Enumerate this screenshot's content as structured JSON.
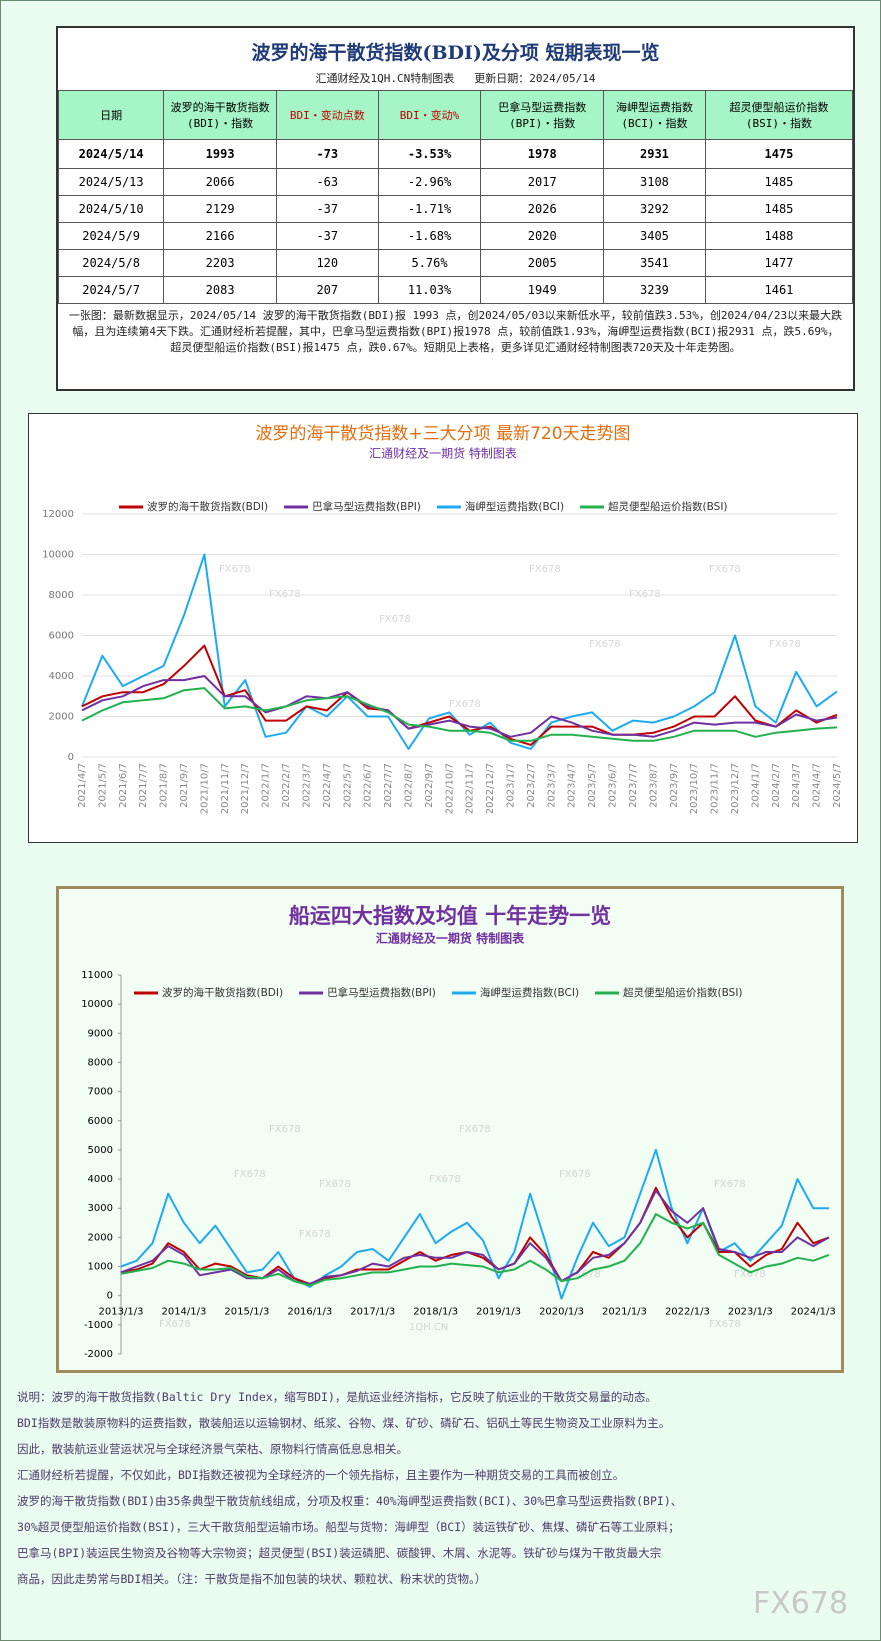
{
  "header": {
    "title": "波罗的海干散货指数(BDI)及分项  短期表现一览",
    "source": "汇通财经及1QH.CN特制图表",
    "update": "更新日期：2024/05/14"
  },
  "table": {
    "columns": [
      [
        "日期"
      ],
      [
        "波罗的海干散货指数",
        "(BDI)・指数"
      ],
      [
        "BDI・变动点数"
      ],
      [
        "BDI・变动%"
      ],
      [
        "巴拿马型运费指数",
        "(BPI)・指数"
      ],
      [
        "海岬型运费指数",
        "(BCI)・指数"
      ],
      [
        "超灵便型船运价指数",
        "(BSI)・指数"
      ]
    ],
    "rows": [
      [
        "2024/5/14",
        "1993",
        "-73",
        "-3.53%",
        "1978",
        "2931",
        "1475"
      ],
      [
        "2024/5/13",
        "2066",
        "-63",
        "-2.96%",
        "2017",
        "3108",
        "1485"
      ],
      [
        "2024/5/10",
        "2129",
        "-37",
        "-1.71%",
        "2026",
        "3292",
        "1485"
      ],
      [
        "2024/5/9",
        "2166",
        "-37",
        "-1.68%",
        "2020",
        "3405",
        "1488"
      ],
      [
        "2024/5/8",
        "2203",
        "120",
        "5.76%",
        "2005",
        "3541",
        "1477"
      ],
      [
        "2024/5/7",
        "2083",
        "207",
        "11.03%",
        "1949",
        "3239",
        "1461"
      ]
    ]
  },
  "summary": "一张图：最新数据显示，2024/05/14 波罗的海干散货指数(BDI)报 1993 点，创2024/05/03以来新低水平，较前值跌3.53%，创2024/04/23以来最大跌幅，且为连续第4天下跌。汇通财经析若提醒，其中，巴拿马型运费指数(BPI)报1978 点，较前值跌1.93%，海岬型运费指数(BCI)报2931 点，跌5.69%，超灵便型船运价指数(BSI)报1475 点，跌0.67%。短期见上表格，更多详见汇通财经特制图表720天及十年走势图。",
  "chart_data": [
    {
      "type": "line",
      "title": "波罗的海干散货指数+三大分项  最新720天走势图",
      "subtitle": "汇通财经及一期货  特制图表",
      "title_color": "#e46c0a",
      "subtitle_color": "#7030a0",
      "categories": [
        "2021/4/7",
        "2021/5/7",
        "2021/6/7",
        "2021/7/7",
        "2021/8/7",
        "2021/9/7",
        "2021/10/7",
        "2021/11/7",
        "2021/12/7",
        "2022/1/7",
        "2022/2/7",
        "2022/3/7",
        "2022/4/7",
        "2022/5/7",
        "2022/6/7",
        "2022/7/7",
        "2022/8/7",
        "2022/9/7",
        "2022/10/7",
        "2022/11/7",
        "2022/12/7",
        "2023/1/7",
        "2023/2/7",
        "2023/3/7",
        "2023/4/7",
        "2023/5/7",
        "2023/6/7",
        "2023/7/7",
        "2023/8/7",
        "2023/9/7",
        "2023/10/7",
        "2023/11/7",
        "2023/12/7",
        "2024/1/7",
        "2024/2/7",
        "2024/3/7",
        "2024/4/7",
        "2024/5/7"
      ],
      "series": [
        {
          "name": "波罗的海干散货指数(BDI)",
          "color": "#c00000",
          "values": [
            2500,
            3000,
            3200,
            3200,
            3600,
            4500,
            5500,
            3000,
            3300,
            1800,
            1800,
            2500,
            2300,
            3200,
            2400,
            2300,
            1400,
            1700,
            2000,
            1300,
            1500,
            900,
            600,
            1500,
            1500,
            1500,
            1100,
            1100,
            1200,
            1500,
            2000,
            2000,
            3000,
            1800,
            1500,
            2300,
            1700,
            2083
          ]
        },
        {
          "name": "巴拿马型运费指数(BPI)",
          "color": "#7030a0",
          "values": [
            2300,
            2800,
            3000,
            3500,
            3800,
            3800,
            4000,
            3000,
            3000,
            2200,
            2500,
            3000,
            2900,
            3200,
            2500,
            2300,
            1400,
            1600,
            1800,
            1500,
            1400,
            1000,
            1200,
            2000,
            1700,
            1300,
            1100,
            1100,
            1000,
            1300,
            1700,
            1600,
            1700,
            1700,
            1500,
            2100,
            1800,
            1949
          ]
        },
        {
          "name": "海岬型运费指数(BCI)",
          "color": "#1eaaf0",
          "values": [
            2500,
            5000,
            3500,
            4000,
            4500,
            7000,
            10000,
            2500,
            3800,
            1000,
            1200,
            2500,
            2000,
            3000,
            2000,
            2000,
            400,
            1900,
            2200,
            1100,
            1700,
            700,
            400,
            1700,
            2000,
            2200,
            1300,
            1800,
            1700,
            2000,
            2500,
            3200,
            6000,
            2500,
            1700,
            4200,
            2500,
            3239
          ]
        },
        {
          "name": "超灵便型船运价指数(BSI)",
          "color": "#22b14c",
          "values": [
            1800,
            2300,
            2700,
            2800,
            2900,
            3300,
            3400,
            2400,
            2500,
            2300,
            2500,
            2800,
            2900,
            3000,
            2600,
            2200,
            1600,
            1500,
            1300,
            1300,
            1200,
            800,
            800,
            1100,
            1100,
            1000,
            900,
            800,
            800,
            1000,
            1300,
            1300,
            1300,
            1000,
            1200,
            1300,
            1400,
            1461
          ]
        }
      ],
      "ylim": [
        0,
        12000
      ],
      "yticks": [
        0,
        2000,
        4000,
        6000,
        8000,
        10000,
        12000
      ],
      "grid": true
    },
    {
      "type": "line",
      "title": "船运四大指数及均值 十年走势一览",
      "subtitle": "汇通财经及一期货 特制图表",
      "title_color": "#7030a0",
      "subtitle_color": "#7030a0",
      "categories": [
        "2013/1/3",
        null,
        null,
        null,
        "2014/1/3",
        null,
        null,
        null,
        "2015/1/3",
        null,
        null,
        null,
        "2016/1/3",
        null,
        null,
        null,
        "2017/1/3",
        null,
        null,
        null,
        "2018/1/3",
        null,
        null,
        null,
        "2019/1/3",
        null,
        null,
        null,
        "2020/1/3",
        null,
        null,
        null,
        "2021/1/3",
        null,
        null,
        null,
        "2022/1/3",
        null,
        null,
        null,
        "2023/1/3",
        null,
        null,
        null,
        "2024/1/3",
        null
      ],
      "series": [
        {
          "name": "波罗的海干散货指数(BDI)",
          "color": "#c00000",
          "values": [
            800,
            900,
            1100,
            1800,
            1500,
            900,
            1100,
            1000,
            700,
            600,
            1000,
            600,
            400,
            600,
            700,
            900,
            900,
            900,
            1200,
            1500,
            1200,
            1400,
            1500,
            1300,
            900,
            1100,
            2000,
            1400,
            500,
            800,
            1500,
            1300,
            1800,
            2500,
            3700,
            2700,
            2000,
            2500,
            1500,
            1500,
            1000,
            1400,
            1600,
            2500,
            1800,
            2000
          ]
        },
        {
          "name": "巴拿马型运费指数(BPI)",
          "color": "#7030a0",
          "values": [
            800,
            1000,
            1200,
            1700,
            1400,
            700,
            800,
            900,
            600,
            600,
            900,
            500,
            400,
            650,
            700,
            850,
            1100,
            1000,
            1300,
            1400,
            1300,
            1300,
            1500,
            1400,
            900,
            1100,
            1800,
            1300,
            500,
            800,
            1300,
            1400,
            1800,
            2500,
            3600,
            2900,
            2500,
            3000,
            1600,
            1500,
            1300,
            1500,
            1500,
            2000,
            1700,
            2000
          ]
        },
        {
          "name": "海岬型运费指数(BCI)",
          "color": "#1eaaf0",
          "values": [
            1000,
            1200,
            1800,
            3500,
            2500,
            1800,
            2400,
            1600,
            800,
            900,
            1500,
            600,
            300,
            700,
            1000,
            1500,
            1600,
            1200,
            2000,
            2800,
            1800,
            2200,
            2500,
            1900,
            600,
            1500,
            3500,
            1800,
            -100,
            1300,
            2500,
            1700,
            2000,
            3500,
            5000,
            3000,
            1800,
            3000,
            1500,
            1800,
            1200,
            1800,
            2400,
            4000,
            3000,
            3000
          ]
        },
        {
          "name": "超灵便型船运价指数(BSI)",
          "color": "#22b14c",
          "values": [
            750,
            850,
            950,
            1200,
            1100,
            900,
            900,
            950,
            650,
            600,
            750,
            500,
            350,
            550,
            600,
            700,
            800,
            800,
            900,
            1000,
            1000,
            1100,
            1050,
            1000,
            800,
            900,
            1200,
            900,
            500,
            600,
            900,
            1000,
            1200,
            1800,
            2800,
            2500,
            2300,
            2500,
            1400,
            1100,
            800,
            1000,
            1100,
            1300,
            1200,
            1400
          ]
        }
      ],
      "ylim": [
        -2000,
        11000
      ],
      "yticks": [
        -2000,
        -1000,
        0,
        1000,
        2000,
        3000,
        4000,
        5000,
        6000,
        7000,
        8000,
        9000,
        10000,
        11000
      ],
      "grid": false
    }
  ],
  "notes": [
    "说明：波罗的海干散货指数(Baltic Dry Index，缩写BDI)，是航运业经济指标，它反映了航运业的干散货交易量的动态。",
    "BDI指数是散装原物料的运费指数，散装船运以运输钢材、纸浆、谷物、煤、矿砂、磷矿石、铝矾土等民生物资及工业原料为主。",
    "因此，散装航运业营运状况与全球经济景气荣枯、原物料行情高低息息相关。",
    "汇通财经析若提醒，不仅如此，BDI指数还被视为全球经济的一个领先指标，且主要作为一种期货交易的工具而被创立。",
    "波罗的海干散货指数(BDI)由35条典型干散货航线组成，分项及权重：40%海岬型运费指数(BCI)、30%巴拿马型运费指数(BPI)、",
    "30%超灵便型船运价指数(BSI)，三大干散货船型运输市场。船型与货物：海岬型（BCI）装运铁矿砂、焦煤、磷矿石等工业原料；",
    "巴拿马(BPI)装运民生物资及谷物等大宗物资；超灵便型(BSI)装运磷肥、碳酸钾、木屑、水泥等。铁矿砂与煤为干散货最大宗",
    "商品，因此走势常与BDI相关。（注：干散货是指不加包装的块状、颗粒状、粉末状的货物。）"
  ],
  "watermarks": [
    "FX678",
    "1QH.CN"
  ]
}
